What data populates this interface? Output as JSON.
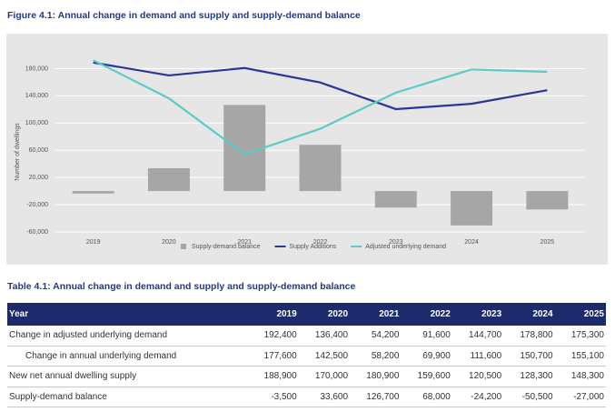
{
  "figure_title": "Figure 4.1: Annual change in demand and supply and supply-demand balance",
  "chart_data": {
    "type": "bar",
    "y_label": "Number of dwellings",
    "categories": [
      "2019",
      "2020",
      "2021",
      "2022",
      "2023",
      "2024",
      "2025"
    ],
    "series": [
      {
        "name": "Supply-demand balance",
        "type": "bar",
        "color": "#a6a6a6",
        "values": [
          -3500,
          33600,
          126700,
          68000,
          -24200,
          -50500,
          -27000
        ]
      },
      {
        "name": "Supply Additions",
        "type": "line",
        "color": "#2b3595",
        "values": [
          188900,
          170000,
          180900,
          159600,
          120500,
          128300,
          148300
        ]
      },
      {
        "name": "Adjusted underlying demand",
        "type": "line",
        "color": "#5ccbc7",
        "values": [
          192400,
          136400,
          54200,
          91600,
          144700,
          178800,
          175300
        ]
      }
    ],
    "ylim": [
      -60000,
      198000
    ],
    "yticks": [
      {
        "value": -60000,
        "label": "-60,000"
      },
      {
        "value": -20000,
        "label": "-20,000"
      },
      {
        "value": 20000,
        "label": "20,000"
      },
      {
        "value": 60000,
        "label": "60,000"
      },
      {
        "value": 100000,
        "label": "100,000"
      },
      {
        "value": 140000,
        "label": "140,000"
      },
      {
        "value": 180000,
        "label": "180,000"
      }
    ],
    "grid": true
  },
  "table_title": "Table 4.1: Annual change in demand and supply and supply-demand balance",
  "table": {
    "header": [
      "Year",
      "2019",
      "2020",
      "2021",
      "2022",
      "2023",
      "2024",
      "2025"
    ],
    "rows": [
      [
        "Change in adjusted underlying demand",
        "192,400",
        "136,400",
        "54,200",
        "91,600",
        "144,700",
        "178,800",
        "175,300"
      ],
      [
        "Change in annual underlying demand",
        "177,600",
        "142,500",
        "58,200",
        "69,900",
        "111,600",
        "150,700",
        "155,100"
      ],
      [
        "New net annual dwelling supply",
        "188,900",
        "170,000",
        "180,900",
        "159,600",
        "120,500",
        "128,300",
        "148,300"
      ],
      [
        "Supply-demand balance",
        "-3,500",
        "33,600",
        "126,700",
        "68,000",
        "-24,200",
        "-50,500",
        "-27,000"
      ]
    ]
  }
}
